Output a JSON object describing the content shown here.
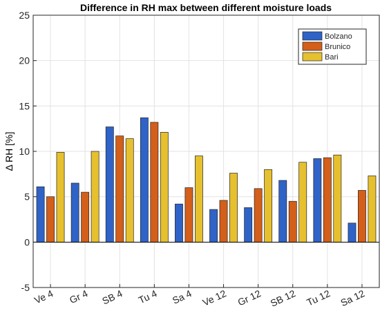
{
  "chart_data": {
    "type": "bar",
    "title": "Difference in RH max between different moisture loads",
    "xlabel": "",
    "ylabel": "Δ RH [%]",
    "ylim": [
      -5,
      25
    ],
    "yticks": [
      -5,
      0,
      5,
      10,
      15,
      20,
      25
    ],
    "grid": true,
    "legend_position": "top-right",
    "categories": [
      "Ve 4",
      "Gr 4",
      "SB 4",
      "Tu 4",
      "Sa 4",
      "Ve 12",
      "Gr 12",
      "SB 12",
      "Tu 12",
      "Sa 12"
    ],
    "series": [
      {
        "name": "Bolzano",
        "color": "#2f63c7",
        "values": [
          6.1,
          6.5,
          12.7,
          13.7,
          4.2,
          3.6,
          3.8,
          6.8,
          9.2,
          2.1
        ]
      },
      {
        "name": "Brunico",
        "color": "#d35f1a",
        "values": [
          5.0,
          5.5,
          11.7,
          13.2,
          6.0,
          4.6,
          5.9,
          4.5,
          9.3,
          5.7
        ]
      },
      {
        "name": "Bari",
        "color": "#e6c02e",
        "values": [
          9.9,
          10.0,
          11.4,
          12.1,
          9.5,
          7.6,
          8.0,
          8.8,
          9.6,
          7.3
        ]
      }
    ]
  }
}
